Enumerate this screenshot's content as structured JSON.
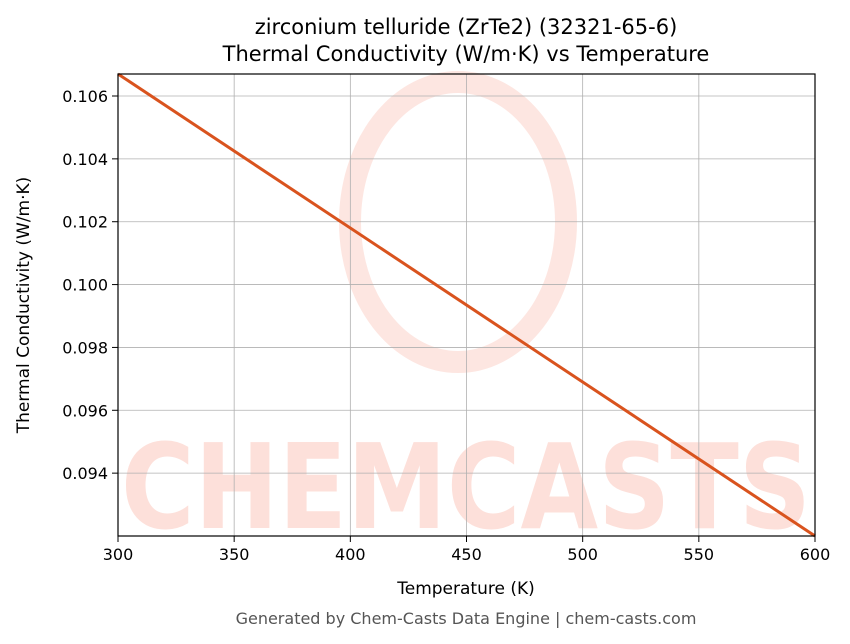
{
  "chart_data": {
    "type": "line",
    "title": "zirconium telluride (ZrTe2) (32321-65-6)",
    "subtitle": "Thermal Conductivity (W/m·K) vs Temperature",
    "x_label": "Temperature (K)",
    "y_label": "Thermal Conductivity (W/m·K)",
    "footer": "Generated by Chem-Casts Data Engine | chem-casts.com",
    "watermark": "CHEMCASTS",
    "x": [
      300,
      600
    ],
    "series": [
      {
        "name": "Thermal Conductivity",
        "color": "#d9531e",
        "values": [
          0.1067,
          0.092
        ]
      }
    ],
    "xlim": [
      300,
      600
    ],
    "xticks": [
      300,
      350,
      400,
      450,
      500,
      550,
      600
    ],
    "ylim": [
      0.092,
      0.1067
    ],
    "yticks": [
      0.094,
      0.096,
      0.098,
      {
        "value": 0.1,
        "label": "0.100"
      },
      0.102,
      0.104,
      0.106
    ],
    "grid": true
  }
}
